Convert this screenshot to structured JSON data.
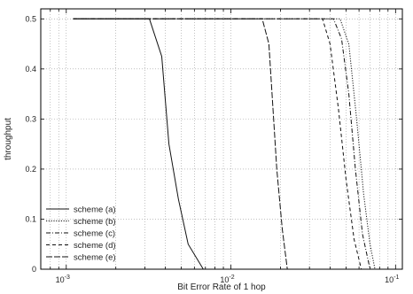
{
  "chart_data": {
    "type": "line",
    "xlabel": "Bit Error Rate of 1 hop",
    "ylabel": "throughput",
    "xscale": "log",
    "xlim": [
      0.0007,
      0.11
    ],
    "ylim": [
      0,
      0.52
    ],
    "grid": true,
    "legend_position": "bottom-left",
    "y_ticks": [
      {
        "value": 0,
        "label": "0"
      },
      {
        "value": 0.1,
        "label": "0.1"
      },
      {
        "value": 0.2,
        "label": "0.2"
      },
      {
        "value": 0.3,
        "label": "0.3"
      },
      {
        "value": 0.4,
        "label": "0.4"
      },
      {
        "value": 0.5,
        "label": "0.5"
      }
    ],
    "x_ticks": [
      {
        "value": 0.001,
        "base": "10",
        "exp": "-3"
      },
      {
        "value": 0.01,
        "base": "10",
        "exp": "-2"
      },
      {
        "value": 0.1,
        "base": "10",
        "exp": "-1"
      }
    ],
    "series": [
      {
        "name": "scheme (a)",
        "dash": "solid",
        "x": [
          0.0011,
          0.0032,
          0.0038,
          0.0042,
          0.0048,
          0.0055,
          0.0068
        ],
        "y": [
          0.5,
          0.5,
          0.425,
          0.25,
          0.14,
          0.05,
          0.0
        ]
      },
      {
        "name": "scheme (b)",
        "dash": "dotted",
        "x": [
          0.0011,
          0.046,
          0.052,
          0.058,
          0.064,
          0.07,
          0.075
        ],
        "y": [
          0.5,
          0.5,
          0.45,
          0.3,
          0.15,
          0.05,
          0.0
        ]
      },
      {
        "name": "scheme (c)",
        "dash": "dashdot",
        "x": [
          0.0011,
          0.042,
          0.047,
          0.052,
          0.057,
          0.063,
          0.07
        ],
        "y": [
          0.5,
          0.5,
          0.46,
          0.35,
          0.2,
          0.07,
          0.0
        ]
      },
      {
        "name": "scheme (d)",
        "dash": "dashed",
        "x": [
          0.0011,
          0.036,
          0.04,
          0.045,
          0.05,
          0.056,
          0.062
        ],
        "y": [
          0.5,
          0.5,
          0.45,
          0.32,
          0.18,
          0.06,
          0.0
        ]
      },
      {
        "name": "scheme (e)",
        "dash": "dashlong",
        "x": [
          0.0011,
          0.0155,
          0.017,
          0.019,
          0.0205,
          0.022
        ],
        "y": [
          0.5,
          0.5,
          0.45,
          0.2,
          0.08,
          0.0
        ]
      }
    ]
  }
}
